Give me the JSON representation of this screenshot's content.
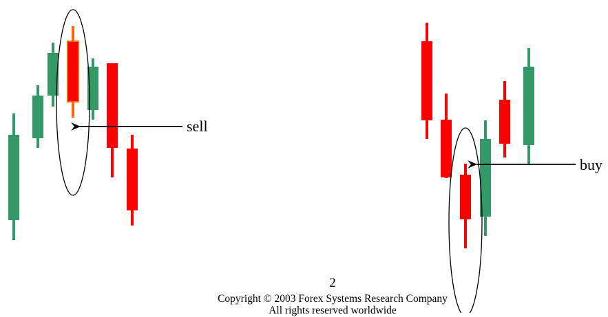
{
  "colors": {
    "bull": "#339966",
    "bear": "#ff0000",
    "highlight_body": "#ff0000",
    "highlight_wick": "#ff6600",
    "line": "#000000"
  },
  "left_pattern": {
    "label": "sell",
    "candles": [
      {
        "dir": "bull"
      },
      {
        "dir": "bull"
      },
      {
        "dir": "bull"
      },
      {
        "dir": "bear",
        "highlight": true
      },
      {
        "dir": "bull"
      },
      {
        "dir": "bear"
      },
      {
        "dir": "bear"
      }
    ]
  },
  "right_pattern": {
    "label": "buy",
    "candles": [
      {
        "dir": "bear"
      },
      {
        "dir": "bear"
      },
      {
        "dir": "bear"
      },
      {
        "dir": "bull"
      },
      {
        "dir": "bear"
      },
      {
        "dir": "bull"
      }
    ]
  },
  "footer": {
    "page_number": "2",
    "copyright": "Copyright © 2003 Forex Systems Research Company",
    "rights": "All rights reserved worldwide"
  }
}
